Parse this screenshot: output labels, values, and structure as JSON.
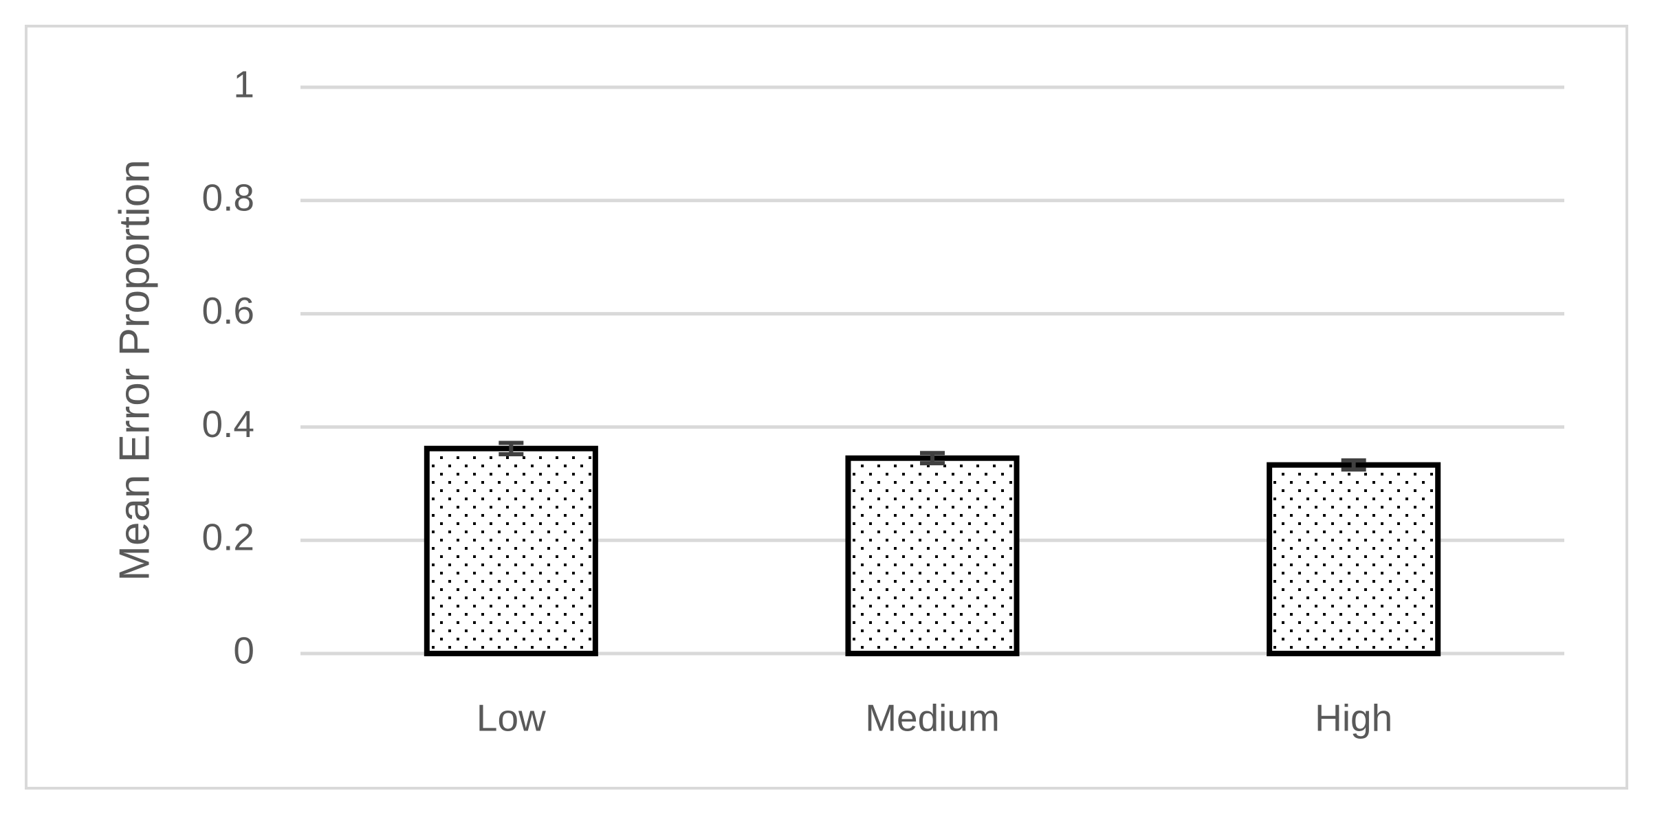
{
  "chart_data": {
    "type": "bar",
    "y_label": "Mean Error Proportion",
    "categories": [
      "Low",
      "Medium",
      "High"
    ],
    "values": [
      0.362,
      0.345,
      0.333
    ],
    "errors": [
      0.01,
      0.009,
      0.008
    ],
    "color": "#000000",
    "error_color": "#404040",
    "ylim": [
      0,
      1
    ],
    "yticks": [
      0,
      0.2,
      0.4,
      0.6,
      0.8,
      1
    ],
    "grid": true
  }
}
